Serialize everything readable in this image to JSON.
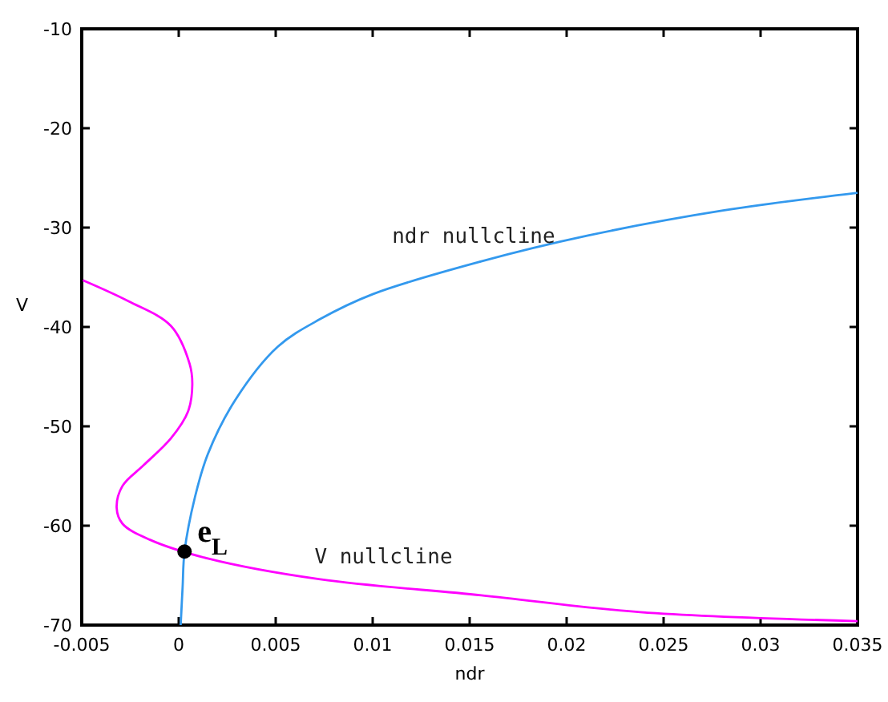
{
  "chart_data": {
    "type": "line",
    "xlabel": "ndr",
    "ylabel": "V",
    "xlim": [
      -0.005,
      0.035
    ],
    "ylim": [
      -70,
      -10
    ],
    "xticks": [
      -0.005,
      0,
      0.005,
      0.01,
      0.015,
      0.02,
      0.025,
      0.03,
      0.035
    ],
    "yticks": [
      -70,
      -60,
      -50,
      -40,
      -30,
      -20,
      -10
    ],
    "grid": false,
    "marker": "none",
    "line_style": "solid",
    "series": [
      {
        "name": "ndr nullcline",
        "color": "#3399ee",
        "x": [
          0.0001,
          0.0002,
          0.0003,
          0.00084,
          0.0015,
          0.0029,
          0.0051,
          0.0073,
          0.01,
          0.0156,
          0.0211,
          0.028,
          0.035
        ],
        "values": [
          -70,
          -66.2,
          -62.6,
          -57.1,
          -52.8,
          -47.4,
          -42,
          -39.2,
          -36.7,
          -33.4,
          -30.8,
          -28.3,
          -26.5
        ]
      },
      {
        "name": "V nullcline",
        "color": "#ff00ff",
        "x": [
          -0.00494,
          -0.0026,
          -0.0004,
          0.00056,
          0.0007,
          0.00048,
          -0.0004,
          -0.0018,
          -0.0029,
          -0.0032,
          -0.0029,
          -0.0015,
          0.0015,
          0.0073,
          0.0156,
          0.0238,
          0.035
        ],
        "values": [
          -35.3,
          -37.4,
          -39.9,
          -43.7,
          -45.8,
          -48.5,
          -51.2,
          -53.9,
          -56,
          -58.2,
          -59.8,
          -61.4,
          -63.3,
          -65.4,
          -67,
          -68.7,
          -69.6
        ]
      },
      {
        "type": "scatter",
        "marker": "circle",
        "color": "#000000",
        "x": [
          0.0003
        ],
        "values": [
          -62.6
        ]
      }
    ],
    "annotations": [
      {
        "text": "e$_{L}$",
        "x": 0.0003,
        "y": -62.6
      }
    ]
  }
}
